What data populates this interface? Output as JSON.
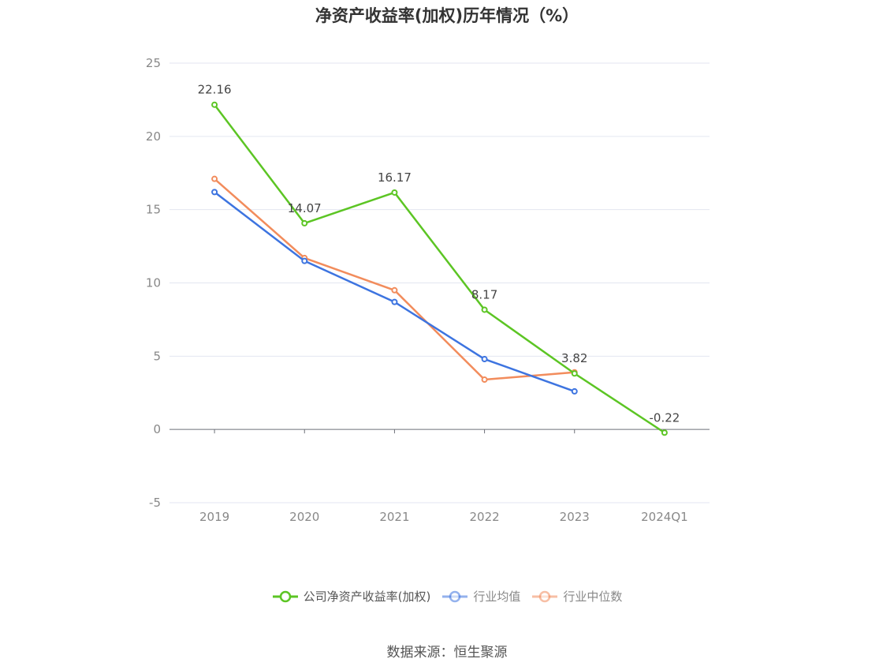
{
  "chart_data": {
    "type": "line",
    "title": "净资产收益率(加权)历年情况（%）",
    "categories": [
      "2019",
      "2020",
      "2021",
      "2022",
      "2023",
      "2024Q1"
    ],
    "ylim": [
      -5,
      25
    ],
    "yticks": [
      -5,
      0,
      5,
      10,
      15,
      20,
      25
    ],
    "grid": true,
    "legend_position": "bottom",
    "series": [
      {
        "name": "公司净资产收益率(加权)",
        "color": "#5cc524",
        "values": [
          22.16,
          14.07,
          16.17,
          8.17,
          3.82,
          -0.22
        ],
        "labels": [
          "22.16",
          "14.07",
          "16.17",
          "8.17",
          "3.82",
          "-0.22"
        ]
      },
      {
        "name": "行业均值",
        "color": "#3d74e0",
        "values": [
          16.2,
          11.5,
          8.7,
          4.8,
          2.6,
          null
        ]
      },
      {
        "name": "行业中位数",
        "color": "#f28c5c",
        "values": [
          17.1,
          11.7,
          9.5,
          3.4,
          3.9,
          null
        ]
      }
    ]
  },
  "source": "数据来源：恒生聚源"
}
